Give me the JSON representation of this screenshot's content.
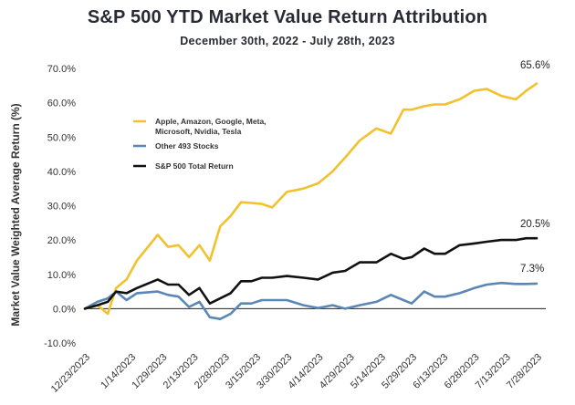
{
  "chart_data": {
    "type": "line",
    "title": "S&P 500 YTD Market Value Return Attribution",
    "subtitle": "December 30th, 2022 - July 28th, 2023",
    "ylabel": "Market Value Weighted Average Return (%)",
    "xlabel": "",
    "ylim": [
      -10,
      70
    ],
    "yticks": [
      70,
      60,
      50,
      40,
      30,
      20,
      10,
      0,
      -10
    ],
    "ytick_labels": [
      "70.0%",
      "60.0%",
      "50.0%",
      "40.0%",
      "30.0%",
      "20.0%",
      "10.0%",
      "0.0%",
      "-10.0%"
    ],
    "xtick_labels": [
      "12/23/2023",
      "1/14/2023",
      "1/29/2023",
      "2/13/2023",
      "2/28/2023",
      "3/15/2023",
      "3/30/2023",
      "4/14/2023",
      "4/29/2023",
      "5/14/2023",
      "5/29/2023",
      "6/13/2023",
      "6/28/2023",
      "7/13/2023",
      "7/28/2023"
    ],
    "x_range": [
      0,
      217
    ],
    "xtick_positions": [
      0,
      22,
      37,
      52,
      67,
      82,
      97,
      112,
      127,
      142,
      157,
      172,
      187,
      202,
      217
    ],
    "x": [
      0,
      6,
      11,
      15,
      20,
      25,
      35,
      40,
      45,
      50,
      55,
      60,
      65,
      70,
      75,
      80,
      85,
      90,
      97,
      105,
      112,
      119,
      125,
      132,
      140,
      147,
      153,
      157,
      163,
      168,
      173,
      180,
      187,
      193,
      200,
      207,
      212,
      217
    ],
    "series": [
      {
        "name": "Apple, Amazon, Google, Meta, Microsoft, Nvidia, Tesla",
        "color": "#f2c12e",
        "values": [
          0,
          1,
          -1.5,
          6,
          8.5,
          14,
          21.5,
          18,
          18.5,
          15,
          18.5,
          14,
          24,
          27,
          31,
          30.8,
          30.5,
          29.5,
          34,
          35,
          36.5,
          40,
          44,
          49,
          52.5,
          51,
          58,
          58,
          59,
          59.5,
          59.5,
          61,
          63.5,
          64,
          62,
          61,
          63.5,
          65.6
        ]
      },
      {
        "name": "Other 493 Stocks",
        "color": "#5b87b7",
        "values": [
          0,
          2,
          3,
          5,
          2.5,
          4.5,
          5,
          4,
          3.5,
          0.5,
          2,
          -2.5,
          -3,
          -1.5,
          1.5,
          1.5,
          2.5,
          2.5,
          2.5,
          1,
          0.2,
          1,
          0,
          1,
          2,
          4,
          2.5,
          1.5,
          5,
          3.5,
          3.5,
          4.5,
          6,
          7,
          7.5,
          7.2,
          7.2,
          7.3
        ]
      },
      {
        "name": "S&P 500 Total Return",
        "color": "#111111",
        "values": [
          0,
          1,
          2,
          5,
          4.5,
          6,
          8.5,
          7,
          7,
          4,
          6,
          1.5,
          3,
          4.5,
          8,
          8,
          9,
          9,
          9.5,
          9,
          8.5,
          10.5,
          11,
          13.5,
          13.5,
          16,
          14.5,
          15,
          17.5,
          16,
          16,
          18.5,
          19,
          19.5,
          20,
          20,
          20.5,
          20.5
        ]
      }
    ],
    "end_labels": [
      "65.6%",
      "20.5%",
      "7.3%"
    ],
    "legend_position": "upper-left inside plot"
  },
  "legend": {
    "items": [
      {
        "lines": [
          "Apple, Amazon, Google, Meta,",
          "Microsoft, Nvidia, Tesla"
        ],
        "color": "#f2c12e"
      },
      {
        "lines": [
          "Other 493 Stocks"
        ],
        "color": "#5b87b7"
      },
      {
        "lines": [
          "S&P 500 Total Return"
        ],
        "color": "#111111"
      }
    ]
  }
}
